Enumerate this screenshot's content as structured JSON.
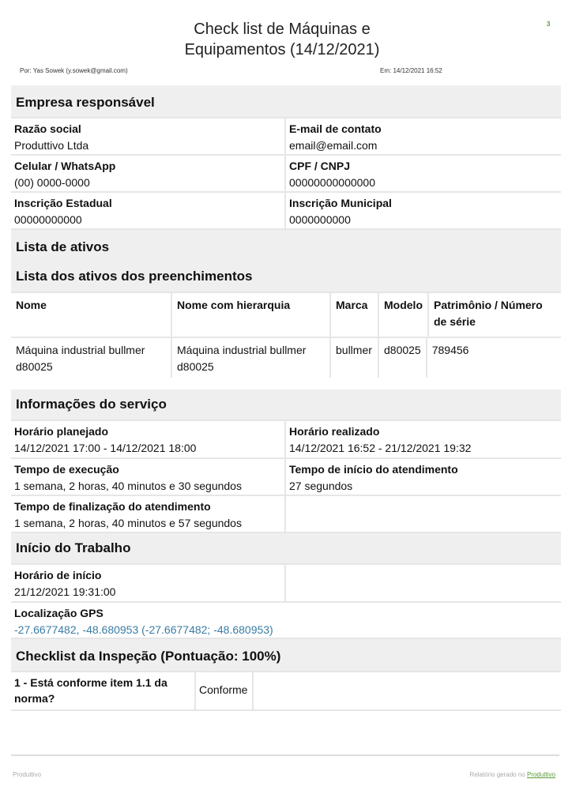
{
  "header": {
    "title_line1": "Check list de Máquinas e",
    "title_line2": "Equipamentos (14/12/2021)",
    "page_number": "3",
    "author": "Por: Yas Sowek (y.sowek@gmail.com)",
    "date": "Em: 14/12/2021 16:52"
  },
  "empresa": {
    "title": "Empresa responsável",
    "fields": [
      {
        "label": "Razão social",
        "value": "Produttivo Ltda"
      },
      {
        "label": "E-mail de contato",
        "value": "email@email.com"
      },
      {
        "label": "Celular / WhatsApp",
        "value": "(00) 0000-0000"
      },
      {
        "label": "CPF / CNPJ",
        "value": "00000000000000"
      },
      {
        "label": "Inscrição Estadual",
        "value": "00000000000"
      },
      {
        "label": "Inscrição Municipal",
        "value": "0000000000"
      }
    ]
  },
  "ativos": {
    "title": "Lista de ativos",
    "subtitle": "Lista dos ativos dos preenchimentos",
    "columns": [
      "Nome",
      "Nome com hierarquia",
      "Marca",
      "Modelo",
      "Patrimônio / Número de série"
    ],
    "rows": [
      [
        "Máquina industrial bullmer d80025",
        "Máquina industrial bullmer d80025",
        "bullmer",
        "d80025",
        "789456"
      ]
    ]
  },
  "servico": {
    "title": "Informações do serviço",
    "fields": [
      {
        "label": "Horário planejado",
        "value": "14/12/2021 17:00 - 14/12/2021 18:00"
      },
      {
        "label": "Horário realizado",
        "value": "14/12/2021 16:52 - 21/12/2021 19:32"
      },
      {
        "label": "Tempo de execução",
        "value": "1 semana, 2 horas, 40 minutos e 30 segundos"
      },
      {
        "label": "Tempo de início do atendimento",
        "value": "27 segundos"
      },
      {
        "label": "Tempo de finalização do atendimento",
        "value": "1 semana, 2 horas, 40 minutos e 57 segundos"
      }
    ]
  },
  "inicio": {
    "title": "Início do Trabalho",
    "start_label": "Horário de início",
    "start_value": "21/12/2021 19:31:00",
    "gps_label": "Localização GPS",
    "gps_value": "-27.6677482, -48.680953 (-27.6677482; -48.680953)"
  },
  "checklist": {
    "title": "Checklist da Inspeção (Pontuação: 100%)",
    "items": [
      {
        "question": "1 - Está conforme item 1.1 da norma?",
        "answer": "Conforme"
      }
    ]
  },
  "footer": {
    "left": "Produttivo",
    "right_prefix": "Relatório gerado no",
    "right_link": "Produttivo"
  },
  "colors": {
    "accent": "#5a9a3a",
    "link": "#3a7ca5",
    "section_bg": "#efefef"
  }
}
